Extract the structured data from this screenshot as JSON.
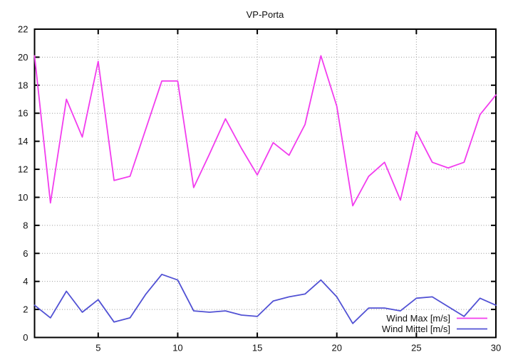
{
  "title": "VP-Porta",
  "colors": {
    "wind_max": "#f23cee",
    "wind_mittel": "#5151d4",
    "axis": "#000000",
    "grid": "#9a9a9a",
    "background": "#ffffff",
    "text": "#111111"
  },
  "chart_data": {
    "type": "line",
    "title": "VP-Porta",
    "xlabel": "",
    "ylabel": "",
    "xlim": [
      1,
      30
    ],
    "ylim": [
      0,
      22
    ],
    "xticks": [
      5,
      10,
      15,
      20,
      25,
      30
    ],
    "yticks": [
      0,
      2,
      4,
      6,
      8,
      10,
      12,
      14,
      16,
      18,
      20,
      22
    ],
    "grid": true,
    "legend_position": "inside-bottom-right",
    "x": [
      1,
      2,
      3,
      4,
      5,
      6,
      7,
      8,
      9,
      10,
      11,
      12,
      13,
      14,
      15,
      16,
      17,
      18,
      19,
      20,
      21,
      22,
      23,
      24,
      25,
      26,
      27,
      28,
      29,
      30
    ],
    "series": [
      {
        "name": "Wind Max [m/s]",
        "color_key": "wind_max",
        "values": [
          20.1,
          9.6,
          17.0,
          14.3,
          19.7,
          11.2,
          11.5,
          14.9,
          18.3,
          18.3,
          10.7,
          13.1,
          15.6,
          13.5,
          11.6,
          13.9,
          13.0,
          15.2,
          20.1,
          16.5,
          9.4,
          11.5,
          12.5,
          9.8,
          14.7,
          12.5,
          12.1,
          12.5,
          15.9,
          17.3
        ]
      },
      {
        "name": "Wind Mittel [m/s]",
        "color_key": "wind_mittel",
        "values": [
          2.3,
          1.4,
          3.3,
          1.8,
          2.7,
          1.1,
          1.4,
          3.1,
          4.5,
          4.1,
          1.9,
          1.8,
          1.9,
          1.6,
          1.5,
          2.6,
          2.9,
          3.1,
          4.1,
          2.9,
          1.0,
          2.1,
          2.1,
          1.9,
          2.8,
          2.9,
          2.2,
          1.5,
          2.8,
          2.3
        ]
      }
    ]
  }
}
